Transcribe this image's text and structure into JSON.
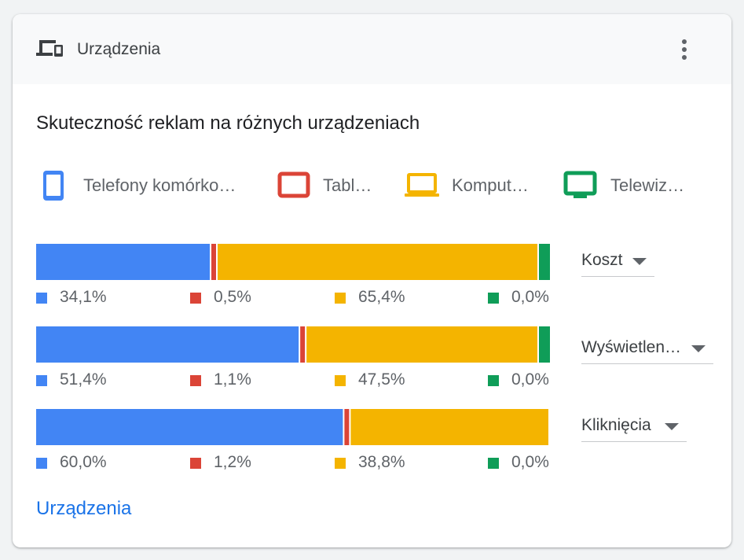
{
  "header": {
    "title": "Urządzenia",
    "icon": "devices-icon",
    "menu_icon": "more-vert-icon"
  },
  "footer_link": "Urządzenia",
  "colors": {
    "mobile": "#4285f4",
    "tablet": "#db4437",
    "computer": "#f4b400",
    "tv": "#0f9d58"
  },
  "chart_data": {
    "type": "bar",
    "orientation": "horizontal-stacked-100",
    "title": "Skuteczność reklam na różnych urządzeniach",
    "legend": [
      {
        "key": "mobile",
        "label": "Telefony komórko…",
        "icon": "phone-icon"
      },
      {
        "key": "tablet",
        "label": "Tabl…",
        "icon": "tablet-icon"
      },
      {
        "key": "computer",
        "label": "Komput…",
        "icon": "laptop-icon"
      },
      {
        "key": "tv",
        "label": "Telewiz…",
        "icon": "tv-icon"
      }
    ],
    "rows": [
      {
        "metric": "Koszt",
        "values": {
          "mobile": 34.1,
          "tablet": 0.5,
          "computer": 65.4,
          "tv": 0.0
        },
        "labels": [
          "34,1%",
          "0,5%",
          "65,4%",
          "0,0%"
        ]
      },
      {
        "metric": "Wyświetlen…",
        "values": {
          "mobile": 51.4,
          "tablet": 1.1,
          "computer": 47.5,
          "tv": 0.0
        },
        "labels": [
          "51,4%",
          "1,1%",
          "47,5%",
          "0,0%"
        ]
      },
      {
        "metric": "Kliknięcia",
        "values": {
          "mobile": 60.0,
          "tablet": 1.2,
          "computer": 38.8,
          "tv": 0.0
        },
        "labels": [
          "60,0%",
          "1,2%",
          "38,8%",
          "0,0%"
        ]
      }
    ]
  }
}
